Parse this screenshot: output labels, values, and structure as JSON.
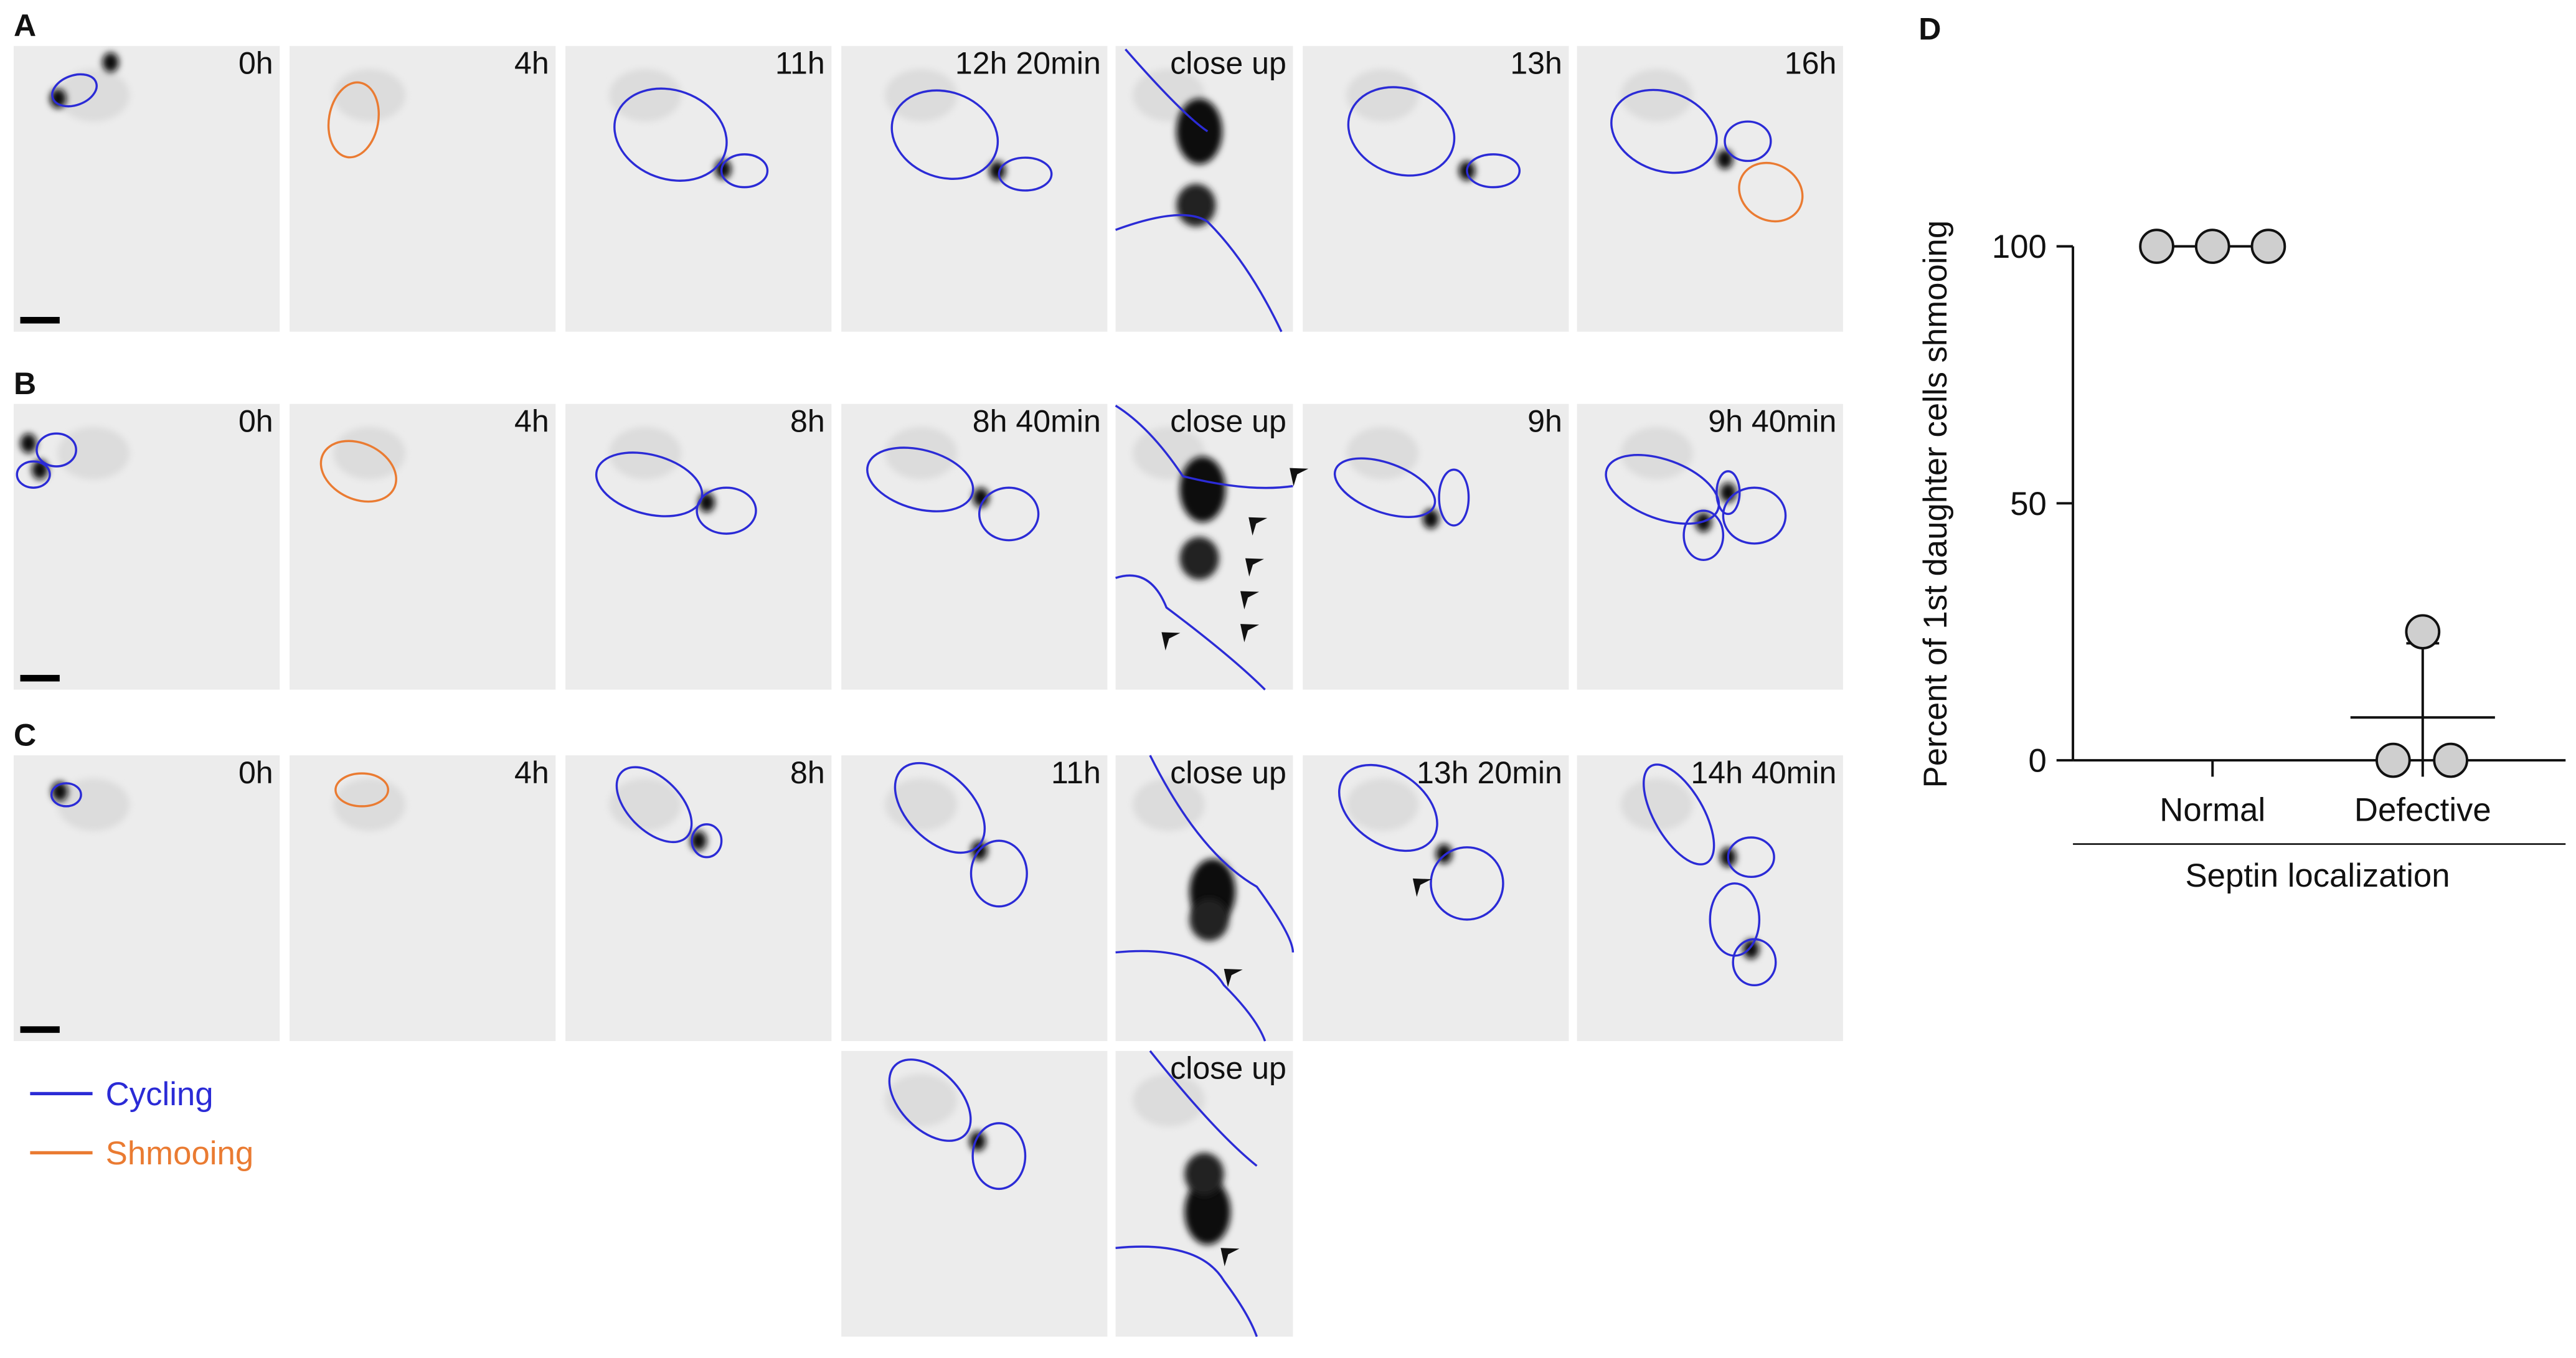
{
  "panels": [
    {
      "label": "A",
      "times": [
        "0h",
        "4h",
        "11h",
        "12h 20min",
        "close up",
        "13h",
        "16h"
      ]
    },
    {
      "label": "B",
      "times": [
        "0h",
        "4h",
        "8h",
        "8h 40min",
        "close up",
        "9h",
        "9h 40min"
      ]
    },
    {
      "label": "C",
      "times": [
        "0h",
        "4h",
        "8h",
        "11h",
        "close up",
        "13h 20min",
        "14h 40min"
      ]
    }
  ],
  "extra_panel": {
    "time": "close up"
  },
  "legend": [
    {
      "name": "Cycling",
      "color": "#2b2bd6"
    },
    {
      "name": "Shmooing",
      "color": "#ea7b32"
    }
  ],
  "chart_data": {
    "type": "scatter",
    "panel_label": "D",
    "y_label": "Percent of 1st daughter cells shmooing",
    "x_label": "Septin localization",
    "categories": [
      "Normal",
      "Defective"
    ],
    "points": [
      [
        100,
        100,
        100
      ],
      [
        25,
        0,
        0
      ]
    ],
    "mean": [
      100,
      8.33
    ],
    "error": [
      0,
      14.43
    ],
    "ylim": [
      0,
      100
    ],
    "yticks": [
      0,
      50,
      100
    ]
  }
}
